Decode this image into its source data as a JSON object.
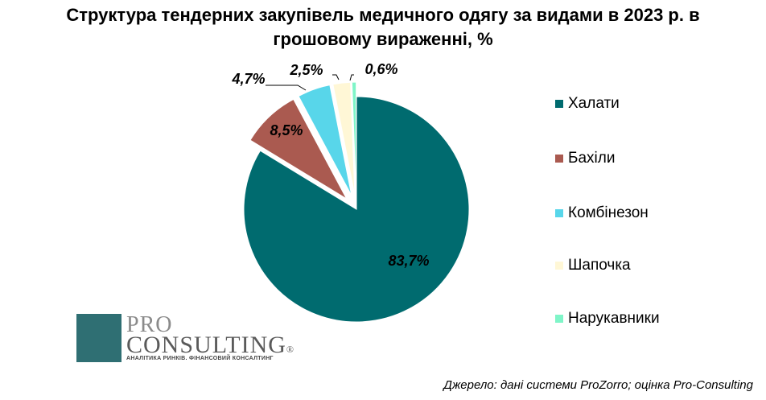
{
  "title_line1": "Структура тендерних закупівель медичного одягу за видами в 2023 р. в",
  "title_line2": "грошовому вираженні, %",
  "chart_data": {
    "type": "pie",
    "categories": [
      "Халати",
      "Бахіли",
      "Комбінезон",
      "Шапочка",
      "Нарукавники"
    ],
    "values": [
      83.7,
      8.5,
      4.7,
      2.5,
      0.6
    ],
    "data_labels": [
      "83,7%",
      "8,5%",
      "4,7%",
      "2,5%",
      "0,6%"
    ],
    "colors": [
      "#006B6F",
      "#AA5A50",
      "#58D6EA",
      "#FFF7D6",
      "#7FF5C8"
    ],
    "legend_position": "right",
    "exploded": true
  },
  "logo": {
    "line1": "PRO",
    "line2": "CONSULTING",
    "mark": "®",
    "subtitle": "АНАЛІТИКА РИНКІВ. ФІНАНСОВИЙ КОНСАЛТИНГ"
  },
  "source": "Джерело: дані системи ProZorro; оцінка Pro-Consulting"
}
